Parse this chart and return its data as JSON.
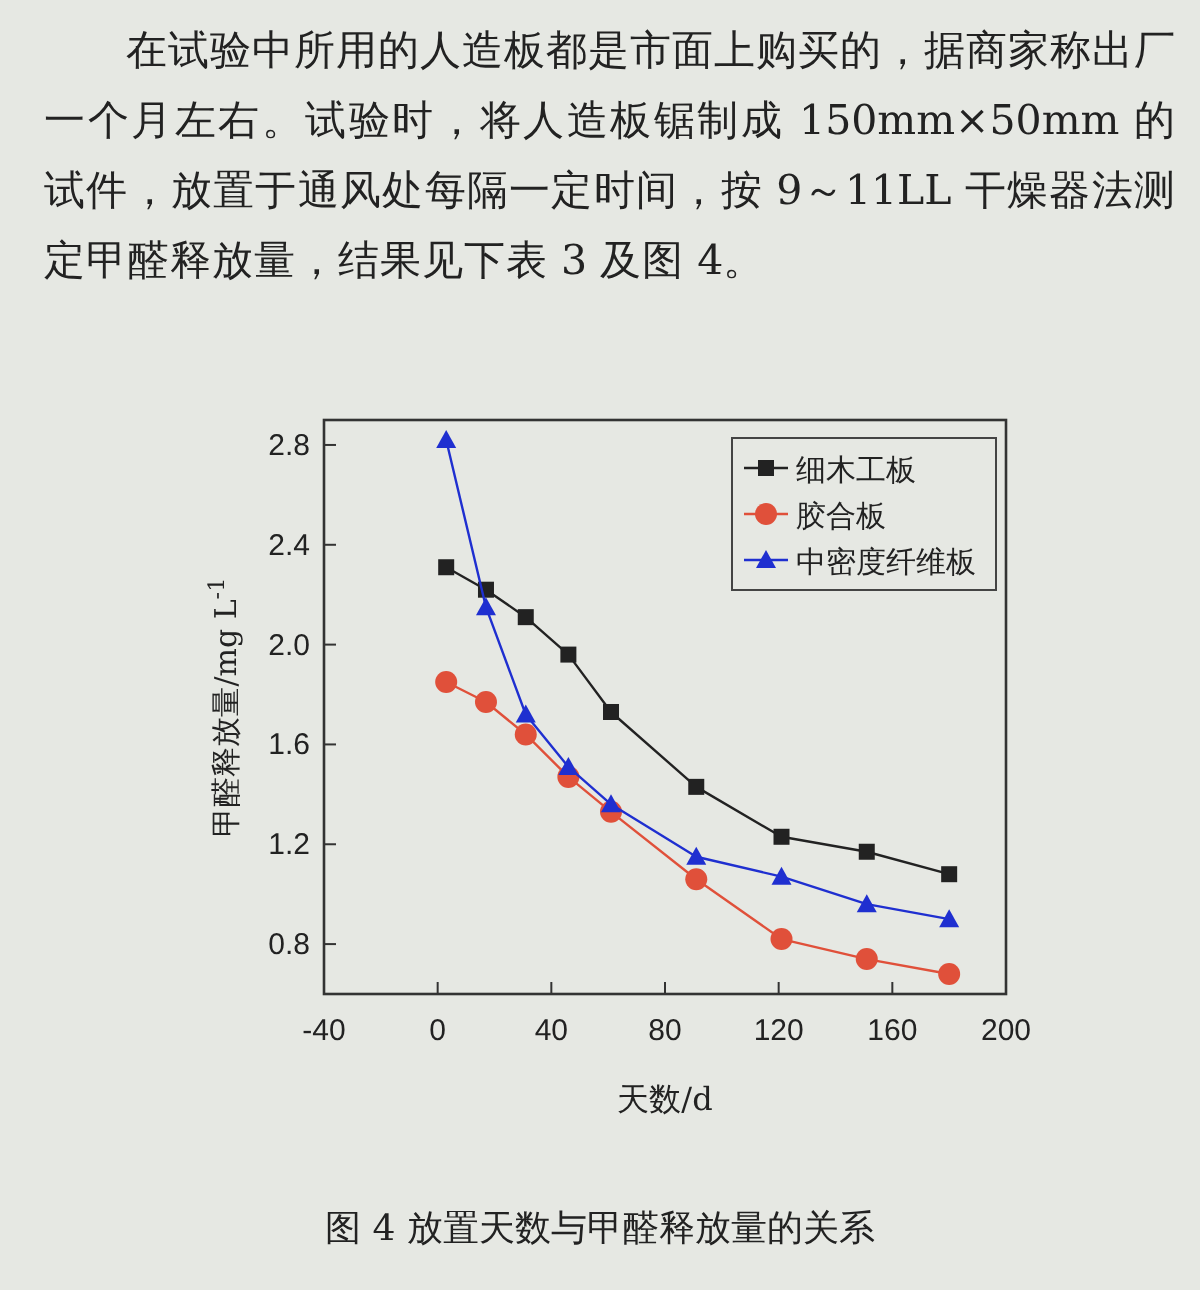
{
  "chart_data": {
    "type": "line",
    "xlabel": "天数/d",
    "ylabel": "甲醛释放量/mg L$^{-1}$",
    "annotations": [
      "在试验中所用的人造板都是市面上购买的，据商家称出厂一个月左右。试验时，将人造板锯制成 150mm×50mm 的试件，放置于通风处每隔一定时间，按 9～11LL 干燥器法测定甲醛释放量，结果见下表 3 及图 4。",
      "图 4  放置天数与甲醛释放量的关系"
    ],
    "x": [
      3,
      17,
      31,
      46,
      61,
      91,
      121,
      151,
      180
    ],
    "series": [
      {
        "name": "细木工板",
        "color": "#222222",
        "marker": "square",
        "values": [
          2.31,
          2.22,
          2.11,
          1.96,
          1.73,
          1.43,
          1.23,
          1.17,
          1.08
        ]
      },
      {
        "name": "胶合板",
        "color": "#e0503a",
        "marker": "circle",
        "values": [
          1.85,
          1.77,
          1.64,
          1.47,
          1.33,
          1.06,
          0.82,
          0.74,
          0.68
        ]
      },
      {
        "name": "中密度纤维板",
        "color": "#1f2fd0",
        "marker": "triangle",
        "values": [
          2.82,
          2.15,
          1.72,
          1.51,
          1.36,
          1.15,
          1.07,
          0.96,
          0.9
        ]
      }
    ],
    "xlim": [
      -40,
      200
    ],
    "xticks": [
      -40,
      0,
      40,
      80,
      120,
      160,
      200
    ],
    "ylim": [
      0.6,
      2.9
    ],
    "yticks": [
      0.8,
      1.2,
      1.6,
      {
        "value": 2,
        "label": "2.0"
      },
      2.4,
      2.8
    ],
    "legend": "top right",
    "grid": false
  }
}
